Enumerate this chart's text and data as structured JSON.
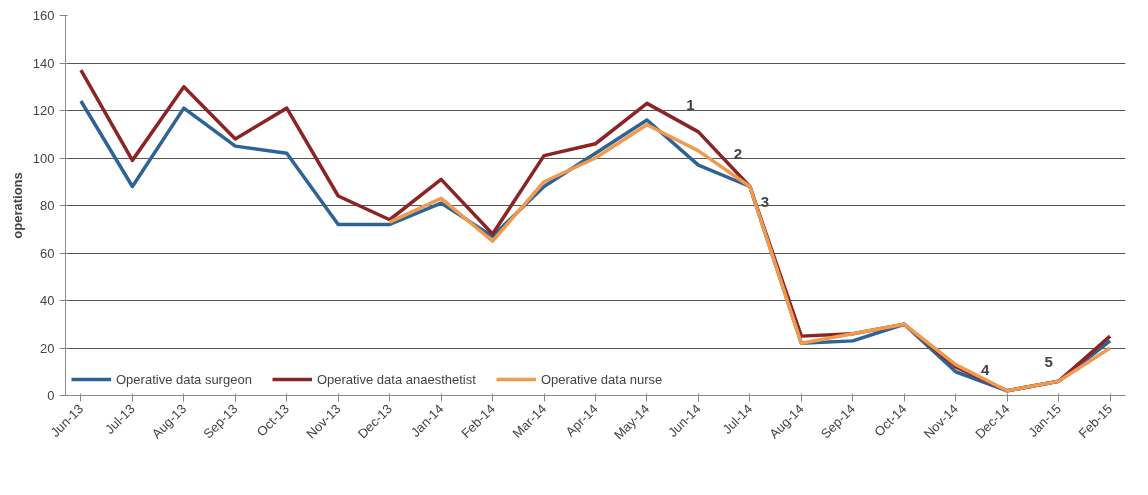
{
  "chart_data": {
    "type": "line",
    "ylabel": "operations",
    "categories": [
      "Jun-13",
      "Jul-13",
      "Aug-13",
      "Sep-13",
      "Oct-13",
      "Nov-13",
      "Dec-13",
      "Jan-14",
      "Feb-14",
      "Mar-14",
      "Apr-14",
      "May-14",
      "Jun-14",
      "Jul-14",
      "Aug-14",
      "Sep-14",
      "Oct-14",
      "Nov-14",
      "Dec-14",
      "Jan-15",
      "Feb-15"
    ],
    "series": [
      {
        "name": "Operative data surgeon",
        "color": "#2e6395",
        "values": [
          124,
          88,
          121,
          105,
          102,
          72,
          72,
          81,
          67,
          88,
          102,
          116,
          97,
          88,
          22,
          23,
          30,
          10,
          2,
          6,
          23
        ]
      },
      {
        "name": "Operative data anaesthetist",
        "color": "#8b2424",
        "values": [
          137,
          99,
          130,
          108,
          121,
          84,
          74,
          91,
          68,
          101,
          106,
          123,
          111,
          88,
          25,
          26,
          30,
          12,
          2,
          6,
          25
        ]
      },
      {
        "name": "Operative data nurse",
        "color": "#ef9a4e",
        "values": [
          null,
          null,
          null,
          null,
          null,
          null,
          73,
          83,
          65,
          90,
          100,
          114,
          103,
          88,
          22,
          26,
          30,
          13,
          2,
          6,
          20
        ]
      }
    ],
    "ylim": [
      0,
      160
    ],
    "yticks": [
      0,
      20,
      40,
      60,
      80,
      100,
      120,
      140,
      160
    ],
    "grid": "y",
    "legend": "bottom",
    "line_style": "solid",
    "marker": "none",
    "annotations": [
      {
        "text": "1",
        "x": "Jun-14",
        "y": 111
      },
      {
        "text": "2",
        "x": "Jul-14",
        "y": 88
      },
      {
        "text": "3",
        "x": "Jul-14",
        "y": 88
      },
      {
        "text": "4",
        "x": "Dec-14",
        "y": 2
      },
      {
        "text": "5",
        "x": "Jan-15",
        "y": 6
      }
    ]
  }
}
